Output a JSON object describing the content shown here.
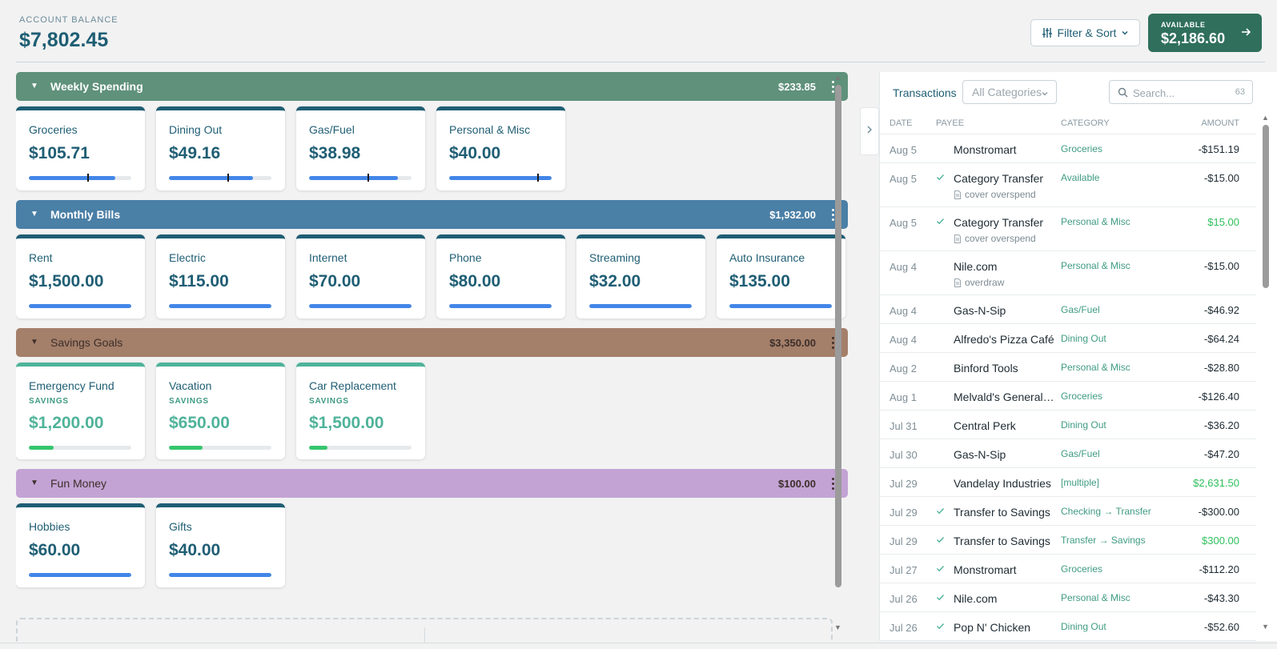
{
  "header": {
    "balance_label": "ACCOUNT BALANCE",
    "balance_value": "$7,802.45",
    "filter_label": "Filter & Sort",
    "available_label": "AVAILABLE",
    "available_value": "$2,186.60"
  },
  "groups": [
    {
      "name": "Weekly Spending",
      "total": "$233.85",
      "color": "#5f917b",
      "categories": [
        {
          "name": "Groceries",
          "amount": "$105.71",
          "progress": 0.84,
          "marker": 0.57
        },
        {
          "name": "Dining Out",
          "amount": "$49.16",
          "progress": 0.82,
          "marker": 0.57
        },
        {
          "name": "Gas/Fuel",
          "amount": "$38.98",
          "progress": 0.87,
          "marker": 0.57
        },
        {
          "name": "Personal & Misc",
          "amount": "$40.00",
          "progress": 1.0,
          "marker": 0.86
        }
      ]
    },
    {
      "name": "Monthly Bills",
      "total": "$1,932.00",
      "color": "#4a7fa6",
      "categories": [
        {
          "name": "Rent",
          "amount": "$1,500.00",
          "progress": 1.0
        },
        {
          "name": "Electric",
          "amount": "$115.00",
          "progress": 1.0
        },
        {
          "name": "Internet",
          "amount": "$70.00",
          "progress": 1.0
        },
        {
          "name": "Phone",
          "amount": "$80.00",
          "progress": 1.0
        },
        {
          "name": "Streaming",
          "amount": "$32.00",
          "progress": 1.0
        },
        {
          "name": "Auto Insurance",
          "amount": "$135.00",
          "progress": 1.0
        }
      ]
    },
    {
      "name": "Savings Goals",
      "total": "$3,350.00",
      "color": "#a47f6a",
      "categories": [
        {
          "name": "Emergency Fund",
          "subtitle": "SAVINGS",
          "amount": "$1,200.00",
          "progress": 0.24
        },
        {
          "name": "Vacation",
          "subtitle": "SAVINGS",
          "amount": "$650.00",
          "progress": 0.33
        },
        {
          "name": "Car Replacement",
          "subtitle": "SAVINGS",
          "amount": "$1,500.00",
          "progress": 0.18
        }
      ]
    },
    {
      "name": "Fun Money",
      "total": "$100.00",
      "color": "#c3a3d4",
      "categories": [
        {
          "name": "Hobbies",
          "amount": "$60.00",
          "progress": 1.0
        },
        {
          "name": "Gifts",
          "amount": "$40.00",
          "progress": 1.0
        }
      ]
    }
  ],
  "transactions": {
    "title": "Transactions",
    "category_select": "All Categories",
    "search_placeholder": "Search...",
    "count": "63",
    "columns": {
      "date": "DATE",
      "payee": "PAYEE",
      "category": "CATEGORY",
      "amount": "AMOUNT"
    },
    "rows": [
      {
        "date": "Aug 5",
        "payee": "Monstromart",
        "category": "Groceries",
        "amount": "-$151.19",
        "cleared": false,
        "memo": "",
        "positive": false
      },
      {
        "date": "Aug 5",
        "payee": "Category Transfer",
        "category": "Available",
        "amount": "-$15.00",
        "cleared": true,
        "memo": "cover overspend",
        "positive": false
      },
      {
        "date": "Aug 5",
        "payee": "Category Transfer",
        "category": "Personal & Misc",
        "amount": "$15.00",
        "cleared": true,
        "memo": "cover overspend",
        "positive": true
      },
      {
        "date": "Aug 4",
        "payee": "Nile.com",
        "category": "Personal & Misc",
        "amount": "-$15.00",
        "cleared": false,
        "memo": "overdraw",
        "positive": false
      },
      {
        "date": "Aug 4",
        "payee": "Gas-N-Sip",
        "category": "Gas/Fuel",
        "amount": "-$46.92",
        "cleared": false,
        "memo": "",
        "positive": false
      },
      {
        "date": "Aug 4",
        "payee": "Alfredo's Pizza Café",
        "category": "Dining Out",
        "amount": "-$64.24",
        "cleared": false,
        "memo": "",
        "positive": false
      },
      {
        "date": "Aug 2",
        "payee": "Binford Tools",
        "category": "Personal & Misc",
        "amount": "-$28.80",
        "cleared": false,
        "memo": "",
        "positive": false
      },
      {
        "date": "Aug 1",
        "payee": "Melvald's General S...",
        "category": "Groceries",
        "amount": "-$126.40",
        "cleared": false,
        "memo": "",
        "positive": false
      },
      {
        "date": "Jul 31",
        "payee": "Central Perk",
        "category": "Dining Out",
        "amount": "-$36.20",
        "cleared": false,
        "memo": "",
        "positive": false
      },
      {
        "date": "Jul 30",
        "payee": "Gas-N-Sip",
        "category": "Gas/Fuel",
        "amount": "-$47.20",
        "cleared": false,
        "memo": "",
        "positive": false
      },
      {
        "date": "Jul 29",
        "payee": "Vandelay Industries",
        "category": "[multiple]",
        "amount": "$2,631.50",
        "cleared": false,
        "memo": "",
        "positive": true
      },
      {
        "date": "Jul 29",
        "payee": "Transfer to Savings",
        "category": "Checking → Transfer",
        "amount": "-$300.00",
        "cleared": true,
        "memo": "",
        "positive": false
      },
      {
        "date": "Jul 29",
        "payee": "Transfer to Savings",
        "category": "Transfer → Savings",
        "amount": "$300.00",
        "cleared": true,
        "memo": "",
        "positive": true
      },
      {
        "date": "Jul 27",
        "payee": "Monstromart",
        "category": "Groceries",
        "amount": "-$112.20",
        "cleared": true,
        "memo": "",
        "positive": false
      },
      {
        "date": "Jul 26",
        "payee": "Nile.com",
        "category": "Personal & Misc",
        "amount": "-$43.30",
        "cleared": true,
        "memo": "",
        "positive": false
      },
      {
        "date": "Jul 26",
        "payee": "Pop N' Chicken",
        "category": "Dining Out",
        "amount": "-$52.60",
        "cleared": true,
        "memo": "",
        "positive": false
      }
    ]
  },
  "colors": {
    "primary": "#1f5e74",
    "available_bg": "#2f6f5b",
    "progress": "#4286e8",
    "savings": "#4fb39a",
    "savings_progress": "#35c56d",
    "positive_amount": "#2fbf5b",
    "category_text": "#3f9b82"
  }
}
